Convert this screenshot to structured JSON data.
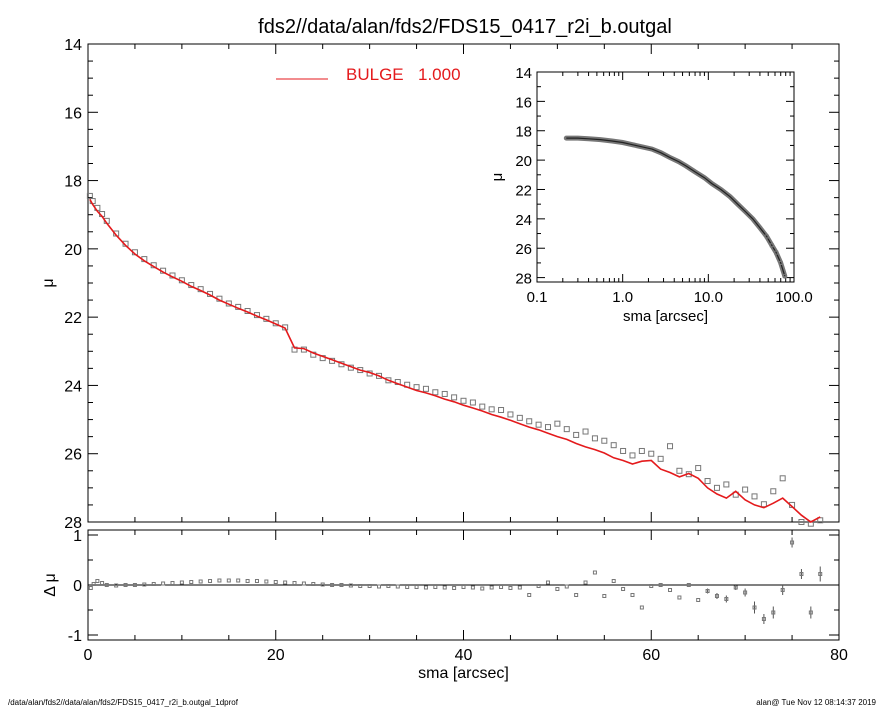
{
  "title": "fds2//data/alan/fds2/FDS15_0417_r2i_b.outgal",
  "footer_left": "/data/alan/fds2//data/alan/fds2/FDS15_0417_r2i_b.outgal_1dprof",
  "footer_right": "alan@  Tue Nov 12 08:14:37 2019",
  "colors": {
    "model": "#e41a1c",
    "data": "#777777",
    "axes": "#000000"
  },
  "chart_data": [
    {
      "id": "main",
      "type": "scatter",
      "xlabel": "sma [arcsec]",
      "ylabel": "μ",
      "xlim": [
        0,
        80
      ],
      "ylim": [
        28,
        14
      ],
      "xticks": [
        0,
        20,
        40,
        60,
        80
      ],
      "yticks": [
        14,
        16,
        18,
        20,
        22,
        24,
        26,
        28
      ],
      "legend": {
        "label": "BULGE",
        "value": "1.000",
        "position": "top-left"
      },
      "series": [
        {
          "name": "BULGE",
          "style": "line",
          "x": [
            0.2,
            0.5,
            1,
            1.5,
            2,
            3,
            4,
            5,
            6,
            7,
            8,
            9,
            10,
            11,
            12,
            13,
            14,
            15,
            16,
            17,
            18,
            19,
            20,
            21,
            22,
            23,
            24,
            25,
            26,
            27,
            28,
            29,
            30,
            31,
            32,
            33,
            34,
            35,
            36,
            37,
            38,
            39,
            40,
            41,
            42,
            43,
            44,
            45,
            46,
            47,
            48,
            49,
            50,
            51,
            52,
            53,
            54,
            55,
            56,
            57,
            58,
            59,
            60,
            61,
            62,
            63,
            64,
            65,
            66,
            67,
            68,
            69,
            70,
            71,
            72,
            73,
            74,
            75,
            76,
            77,
            78
          ],
          "y": [
            18.55,
            18.7,
            18.9,
            19.05,
            19.25,
            19.6,
            19.9,
            20.15,
            20.35,
            20.52,
            20.68,
            20.82,
            20.95,
            21.1,
            21.22,
            21.35,
            21.5,
            21.62,
            21.74,
            21.85,
            21.97,
            22.08,
            22.2,
            22.32,
            22.9,
            22.92,
            23.05,
            23.15,
            23.25,
            23.35,
            23.45,
            23.55,
            23.62,
            23.72,
            23.85,
            23.95,
            24.05,
            24.15,
            24.22,
            24.3,
            24.4,
            24.48,
            24.58,
            24.66,
            24.75,
            24.85,
            24.93,
            25.02,
            25.12,
            25.22,
            25.3,
            25.4,
            25.5,
            25.58,
            25.7,
            25.8,
            25.88,
            25.98,
            26.12,
            26.2,
            26.3,
            26.22,
            26.2,
            26.45,
            26.55,
            26.68,
            26.58,
            26.72,
            27.0,
            27.18,
            27.3,
            27.1,
            27.35,
            27.5,
            27.58,
            27.45,
            27.3,
            27.55,
            27.8,
            28.0,
            27.85
          ]
        },
        {
          "name": "",
          "style": "markers",
          "x": [
            0.2,
            0.5,
            1,
            1.5,
            2,
            3,
            4,
            5,
            6,
            7,
            8,
            9,
            10,
            11,
            12,
            13,
            14,
            15,
            16,
            17,
            18,
            19,
            20,
            21,
            22,
            23,
            24,
            25,
            26,
            27,
            28,
            29,
            30,
            31,
            32,
            33,
            34,
            35,
            36,
            37,
            38,
            39,
            40,
            41,
            42,
            43,
            44,
            45,
            46,
            47,
            48,
            49,
            50,
            51,
            52,
            53,
            54,
            55,
            56,
            57,
            58,
            59,
            60,
            61,
            62,
            63,
            64,
            65,
            66,
            67,
            68,
            69,
            70,
            71,
            72,
            73,
            74,
            75,
            76,
            77,
            78
          ],
          "y": [
            18.45,
            18.6,
            18.8,
            18.98,
            19.18,
            19.55,
            19.85,
            20.1,
            20.3,
            20.48,
            20.64,
            20.78,
            20.92,
            21.06,
            21.18,
            21.32,
            21.46,
            21.6,
            21.7,
            21.82,
            21.94,
            22.05,
            22.18,
            22.3,
            22.95,
            22.95,
            23.1,
            23.2,
            23.28,
            23.38,
            23.48,
            23.55,
            23.65,
            23.72,
            23.85,
            23.9,
            23.98,
            24.05,
            24.1,
            24.2,
            24.25,
            24.35,
            24.45,
            24.5,
            24.62,
            24.7,
            24.72,
            24.85,
            24.95,
            25.05,
            25.15,
            25.22,
            25.12,
            25.28,
            25.45,
            25.35,
            25.55,
            25.62,
            25.75,
            25.92,
            26.05,
            25.92,
            26.0,
            26.15,
            25.78,
            26.5,
            26.6,
            26.42,
            26.8,
            27.0,
            26.9,
            27.2,
            27.05,
            27.25,
            27.48,
            27.1,
            26.72,
            27.5,
            28.0,
            28.05,
            27.95
          ]
        }
      ]
    },
    {
      "id": "inset",
      "type": "scatter",
      "xlabel": "sma [arcsec]",
      "ylabel": "μ",
      "xscale": "log",
      "xlim": [
        0.1,
        100
      ],
      "ylim": [
        28.3,
        14
      ],
      "xticks": [
        "0.1",
        "1.0",
        "10.0",
        "100.0"
      ],
      "yticks": [
        14,
        16,
        18,
        20,
        22,
        24,
        26,
        28
      ],
      "series": [
        {
          "name": "",
          "style": "markers",
          "x": [
            0.22,
            0.3,
            0.4,
            0.55,
            0.75,
            1.0,
            1.3,
            1.7,
            2.2,
            2.8,
            3.5,
            4.5,
            5.5,
            7,
            9,
            11,
            14,
            18,
            22,
            27,
            33,
            40,
            48,
            55,
            62,
            70,
            78
          ],
          "y": [
            18.5,
            18.5,
            18.55,
            18.6,
            18.7,
            18.8,
            18.95,
            19.1,
            19.25,
            19.5,
            19.8,
            20.1,
            20.4,
            20.8,
            21.2,
            21.6,
            22.0,
            22.5,
            23.0,
            23.5,
            24.0,
            24.6,
            25.2,
            25.8,
            26.3,
            27.0,
            27.9
          ]
        }
      ]
    },
    {
      "id": "residual",
      "type": "scatter",
      "xlabel": "sma [arcsec]",
      "ylabel": "Δ μ",
      "xlim": [
        0,
        80
      ],
      "ylim": [
        -1.1,
        1.1
      ],
      "xticks": [
        0,
        20,
        40,
        60,
        80
      ],
      "yticks": [
        -1,
        0,
        1
      ],
      "series": [
        {
          "name": "",
          "style": "markers",
          "x": [
            0.3,
            0.6,
            1,
            1.5,
            2,
            3,
            4,
            5,
            6,
            7,
            8,
            9,
            10,
            11,
            12,
            13,
            14,
            15,
            16,
            17,
            18,
            19,
            20,
            21,
            22,
            23,
            24,
            25,
            26,
            27,
            28,
            29,
            30,
            31,
            32,
            33,
            34,
            35,
            36,
            37,
            38,
            39,
            40,
            41,
            42,
            43,
            44,
            45,
            46,
            47,
            48,
            49,
            50,
            51,
            52,
            53,
            54,
            55,
            56,
            57,
            58,
            59,
            60,
            61,
            62,
            63,
            64,
            65,
            66,
            67,
            68,
            69,
            70,
            71,
            72,
            73,
            74,
            75,
            76,
            77,
            78
          ],
          "y": [
            -0.06,
            0.02,
            0.08,
            0.04,
            0.0,
            -0.01,
            0.0,
            0.0,
            0.01,
            0.02,
            0.03,
            0.04,
            0.05,
            0.06,
            0.07,
            0.08,
            0.09,
            0.09,
            0.09,
            0.08,
            0.08,
            0.07,
            0.06,
            0.05,
            0.04,
            0.03,
            0.02,
            0.01,
            0.0,
            0.0,
            -0.01,
            -0.02,
            -0.02,
            -0.03,
            -0.02,
            -0.03,
            -0.04,
            -0.04,
            -0.05,
            -0.04,
            -0.05,
            -0.06,
            -0.04,
            -0.05,
            -0.07,
            -0.05,
            -0.04,
            -0.06,
            -0.05,
            -0.2,
            -0.02,
            0.05,
            -0.08,
            -0.03,
            -0.2,
            0.05,
            0.25,
            -0.22,
            0.08,
            -0.08,
            -0.2,
            -0.45,
            -0.02,
            0.0,
            -0.1,
            -0.25,
            0.0,
            -0.3,
            -0.12,
            -0.22,
            -0.28,
            -0.05,
            -0.15,
            -0.45,
            -0.68,
            -0.55,
            -0.1,
            0.85,
            0.22,
            -0.55,
            0.22
          ],
          "err": [
            0,
            0,
            0,
            0,
            0,
            0,
            0,
            0,
            0,
            0,
            0,
            0,
            0,
            0,
            0,
            0,
            0,
            0,
            0,
            0,
            0,
            0,
            0,
            0,
            0,
            0,
            0,
            0,
            0,
            0,
            0,
            0,
            0,
            0,
            0,
            0,
            0,
            0,
            0,
            0,
            0,
            0,
            0,
            0,
            0,
            0,
            0,
            0,
            0,
            0,
            0,
            0,
            0,
            0,
            0,
            0,
            0,
            0,
            0,
            0,
            0,
            0,
            0,
            0,
            0,
            0,
            0,
            0,
            0.05,
            0.06,
            0.07,
            0.05,
            0.08,
            0.12,
            0.1,
            0.12,
            0.1,
            0.1,
            0.1,
            0.12,
            0.15
          ]
        }
      ]
    }
  ]
}
